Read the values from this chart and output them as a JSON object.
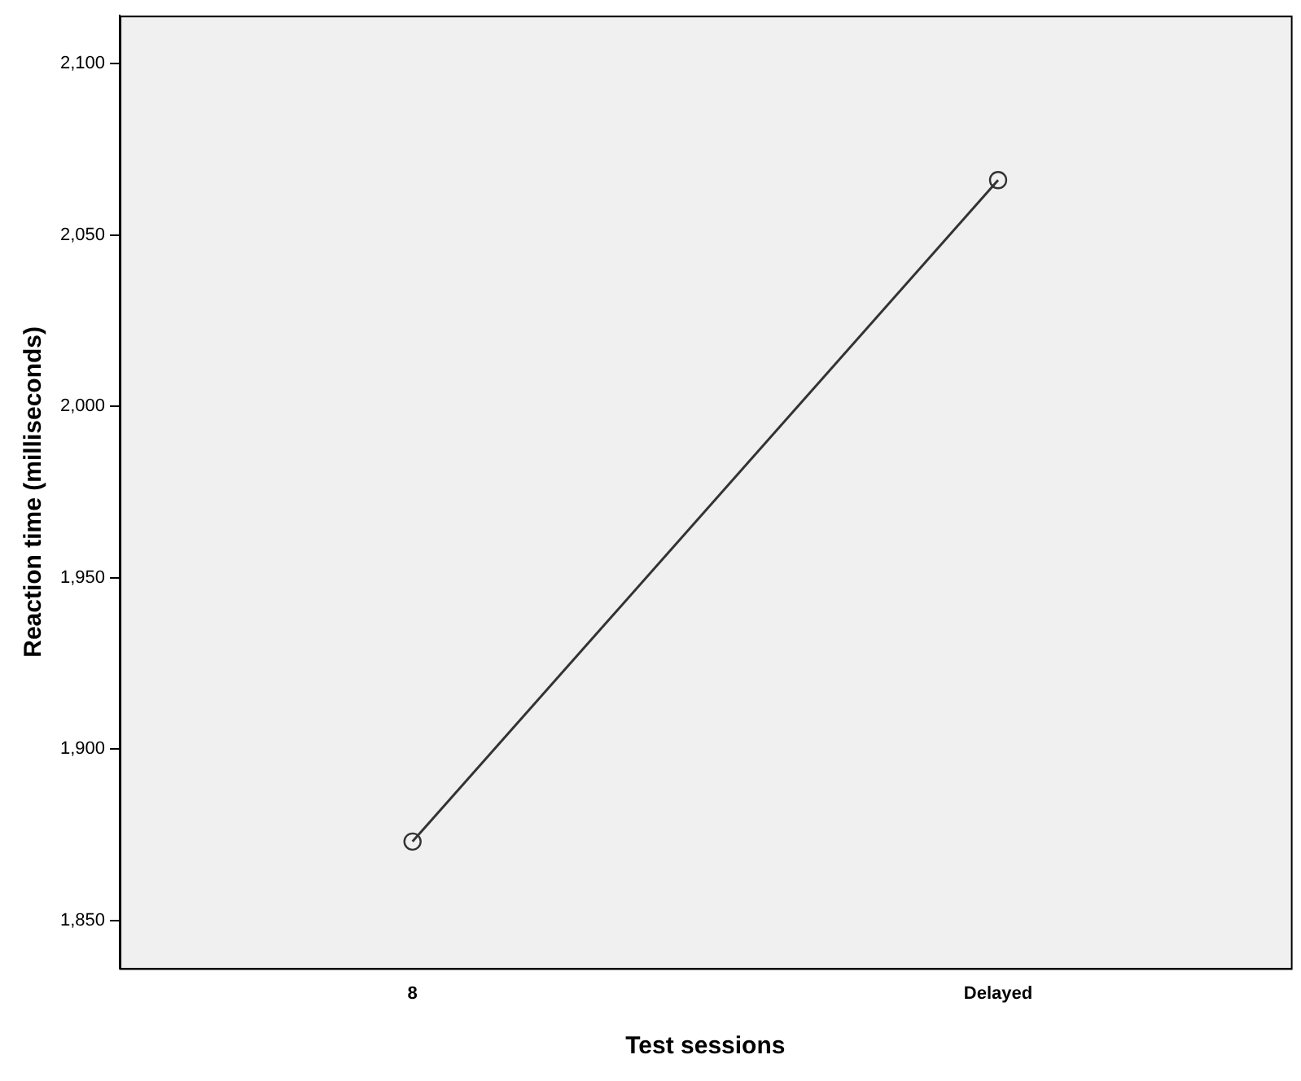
{
  "chart_data": {
    "type": "line",
    "xlabel": "Test sessions",
    "ylabel": "Reaction time (milliseconds)",
    "categories": [
      "8",
      "Delayed"
    ],
    "series": [
      {
        "color": "#333333",
        "values": [
          1873,
          2066
        ]
      }
    ],
    "ylim": [
      1836,
      2114
    ],
    "yticks": [
      {
        "value": 1850,
        "label": "1,850"
      },
      {
        "value": 1900,
        "label": "1,900"
      },
      {
        "value": 1950,
        "label": "1,950"
      },
      {
        "value": 2000,
        "label": "2,000"
      },
      {
        "value": 2050,
        "label": "2,050"
      },
      {
        "value": 2100,
        "label": "2,100"
      }
    ],
    "grid": false,
    "legend": false,
    "marker": "circle",
    "line_style": "solid"
  }
}
